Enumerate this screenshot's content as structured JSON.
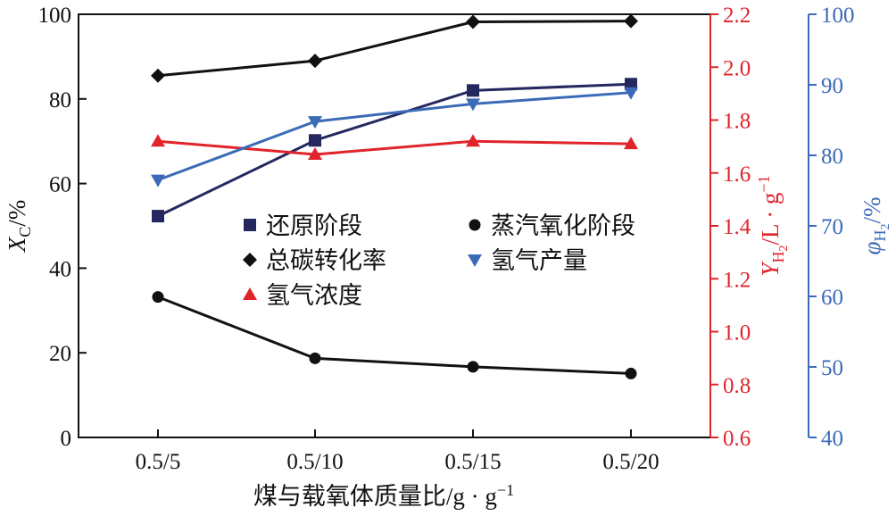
{
  "chart_data": {
    "type": "line",
    "categories": [
      "0.5/5",
      "0.5/10",
      "0.5/15",
      "0.5/20"
    ],
    "xlabel": "煤与载氧体质量比/g · g",
    "xlabel_sup": "−1",
    "axes": {
      "left": {
        "label_main": "X",
        "label_sub": "C",
        "label_rest": "/%",
        "range": [
          0,
          100
        ],
        "ticks": [
          0,
          20,
          40,
          60,
          80,
          100
        ],
        "tick_labels": [
          "0",
          "20",
          "40",
          "60",
          "80",
          "100"
        ],
        "color": "#1a1a1a"
      },
      "right1": {
        "label_main": "Y",
        "label_sub": "H",
        "label_sub2": "2",
        "label_rest": "/L · g",
        "label_sup": "−1",
        "range": [
          0.6,
          2.2
        ],
        "ticks": [
          0.6,
          0.8,
          1.0,
          1.2,
          1.4,
          1.6,
          1.8,
          2.0,
          2.2
        ],
        "tick_labels": [
          "0.6",
          "0.8",
          "1.0",
          "1.2",
          "1.4",
          "1.6",
          "1.8",
          "2.0",
          "2.2"
        ],
        "color": "#e0242b"
      },
      "right2": {
        "label_main": "φ",
        "label_sub": "H",
        "label_sub2": "2",
        "label_rest": "/%",
        "range": [
          40,
          100
        ],
        "ticks": [
          40,
          50,
          60,
          70,
          80,
          90,
          100
        ],
        "tick_labels": [
          "40",
          "50",
          "60",
          "70",
          "80",
          "90",
          "100"
        ],
        "color": "#3b6bb8"
      }
    },
    "series": [
      {
        "name": "还原阶段",
        "axis": "left",
        "marker": "square",
        "color": "#24285e",
        "values": [
          52.3,
          70.2,
          82.0,
          83.5
        ]
      },
      {
        "name": "总碳转化率",
        "axis": "left",
        "marker": "diamond",
        "color": "#111111",
        "values": [
          85.5,
          89.0,
          98.2,
          98.4
        ]
      },
      {
        "name": "氢气浓度",
        "axis": "right1",
        "marker": "triangle-up",
        "color": "#e0242b",
        "values": [
          1.72,
          1.67,
          1.72,
          1.71
        ]
      },
      {
        "name": "蒸汽氧化阶段",
        "axis": "left",
        "marker": "circle",
        "color": "#111111",
        "values": [
          33.2,
          18.7,
          16.7,
          15.1
        ]
      },
      {
        "name": "氢气产量",
        "axis": "right2",
        "marker": "triangle-down",
        "color": "#3b6bb8",
        "values": [
          76.5,
          84.8,
          87.3,
          88.9
        ]
      }
    ],
    "legend": {
      "placement": "center",
      "columns": [
        [
          "还原阶段",
          "总碳转化率",
          "氢气浓度"
        ],
        [
          "蒸汽氧化阶段",
          "氢气产量"
        ]
      ]
    },
    "grid": false
  }
}
